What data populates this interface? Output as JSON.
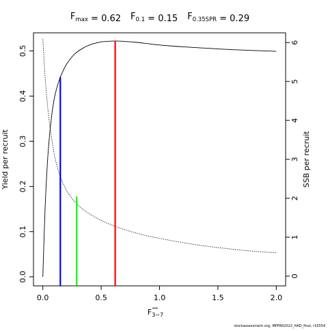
{
  "chart_data": {
    "type": "line",
    "title": {
      "parts": [
        {
          "main": "F",
          "sub": "max",
          "value": " = 0.62"
        },
        {
          "main": "F",
          "sub": "0.1",
          "value": " = 0.15"
        },
        {
          "main": "F",
          "sub": "0.35SPR",
          "value": " = 0.29"
        }
      ]
    },
    "xlabel": {
      "main": "F",
      "sub": "3−7",
      "overline": true
    },
    "ylabel_left": "Yield per recruit",
    "ylabel_right": "SSB per recruit",
    "xlim": [
      -0.08,
      2.08
    ],
    "ylim_left": [
      -0.02,
      0.54
    ],
    "ylim_right": [
      -0.25,
      6.25
    ],
    "x_ticks": [
      0.0,
      0.5,
      1.0,
      1.5,
      2.0
    ],
    "x_tick_labels": [
      "0.0",
      "0.5",
      "1.0",
      "1.5",
      "2.0"
    ],
    "y_left_ticks": [
      0.0,
      0.1,
      0.2,
      0.3,
      0.4,
      0.5
    ],
    "y_left_tick_labels": [
      "0.0",
      "0.1",
      "0.2",
      "0.3",
      "0.4",
      "0.5"
    ],
    "y_right_ticks": [
      0,
      1,
      2,
      3,
      4,
      5,
      6
    ],
    "y_right_tick_labels": [
      "0",
      "1",
      "2",
      "3",
      "4",
      "5",
      "6"
    ],
    "grid": false,
    "series": [
      {
        "axis": "left",
        "style": "solid",
        "x": [
          0.0,
          0.02,
          0.04,
          0.06,
          0.08,
          0.1,
          0.12,
          0.15,
          0.2,
          0.25,
          0.29,
          0.35,
          0.4,
          0.45,
          0.5,
          0.55,
          0.62,
          0.7,
          0.8,
          0.9,
          1.0,
          1.2,
          1.4,
          1.6,
          1.8,
          2.0
        ],
        "values": [
          0.0,
          0.155,
          0.255,
          0.32,
          0.365,
          0.397,
          0.418,
          0.442,
          0.469,
          0.487,
          0.497,
          0.507,
          0.513,
          0.517,
          0.52,
          0.521,
          0.522,
          0.521,
          0.519,
          0.516,
          0.513,
          0.509,
          0.506,
          0.503,
          0.501,
          0.499
        ]
      },
      {
        "axis": "right",
        "style": "dotted",
        "x": [
          0.0,
          0.02,
          0.04,
          0.06,
          0.08,
          0.1,
          0.12,
          0.15,
          0.2,
          0.25,
          0.29,
          0.35,
          0.4,
          0.5,
          0.62,
          0.75,
          0.9,
          1.0,
          1.2,
          1.4,
          1.6,
          1.8,
          2.0
        ],
        "values": [
          6.1,
          5.1,
          4.4,
          3.85,
          3.45,
          3.1,
          2.85,
          2.55,
          2.22,
          2.0,
          1.86,
          1.7,
          1.6,
          1.43,
          1.28,
          1.15,
          1.03,
          0.97,
          0.86,
          0.77,
          0.7,
          0.64,
          0.6
        ]
      }
    ],
    "reference_lines": [
      {
        "x": 0.15,
        "y": 0.442,
        "color": "#0000ff"
      },
      {
        "x": 0.29,
        "y": 0.178,
        "color": "#00ff00"
      },
      {
        "x": 0.62,
        "y": 0.522,
        "color": "#ff0000"
      }
    ],
    "footer_note": "stockassessment.org, IBPFAR2022_HAD_final, r16554"
  }
}
